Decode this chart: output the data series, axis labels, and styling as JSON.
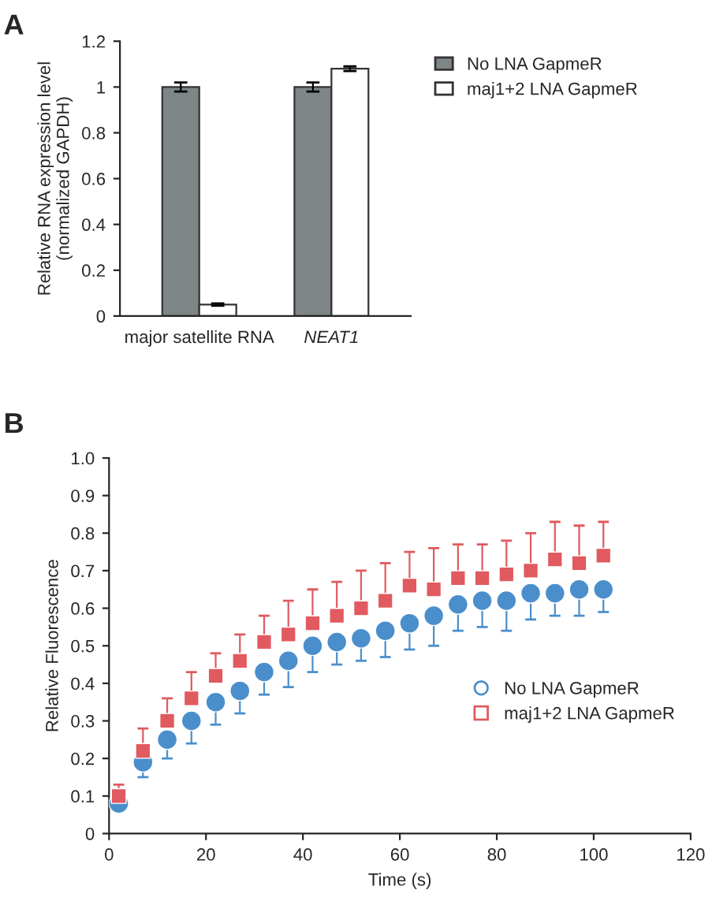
{
  "chart_data": [
    {
      "type": "bar",
      "title": "A",
      "ylabel": "Relative RNA expression level\n(normalized GAPDH)",
      "categories": [
        "major satellite RNA",
        "NEAT1"
      ],
      "ylim": [
        0,
        1.2
      ],
      "yticks": [
        0,
        0.2,
        0.4,
        0.6,
        0.8,
        1,
        1.2
      ],
      "legend": "top right",
      "grid": false,
      "series": [
        {
          "name": "No LNA GapmeR",
          "color": "#7f8687",
          "values": [
            1.0,
            1.0
          ],
          "errors": [
            0.02,
            0.02
          ]
        },
        {
          "name": "maj1+2 LNA GapmeR",
          "color": "#ffffff",
          "values": [
            0.05,
            1.08
          ],
          "errors": [
            0.005,
            0.01
          ]
        }
      ]
    },
    {
      "type": "scatter",
      "title": "B",
      "xlabel": "Time (s)",
      "ylabel": "Relative Fluorescence",
      "xlim": [
        0,
        120
      ],
      "xticks": [
        0,
        20,
        40,
        60,
        80,
        100,
        120
      ],
      "ylim": [
        0,
        1.0
      ],
      "yticks": [
        0,
        0.1,
        0.2,
        0.3,
        0.4,
        0.5,
        0.6,
        0.7,
        0.8,
        0.9,
        {
          "value": 1.0,
          "label": "1.0"
        }
      ],
      "legend": "right",
      "grid": false,
      "x": [
        2,
        7,
        12,
        17,
        22,
        27,
        32,
        37,
        42,
        47,
        52,
        57,
        62,
        67,
        72,
        77,
        82,
        87,
        92,
        97,
        102
      ],
      "series": [
        {
          "name": "No LNA GapmeR",
          "color": "#4a8fcc",
          "marker": "circle",
          "values": [
            0.08,
            0.19,
            0.25,
            0.3,
            0.35,
            0.38,
            0.43,
            0.46,
            0.5,
            0.51,
            0.52,
            0.54,
            0.56,
            0.58,
            0.61,
            0.62,
            0.62,
            0.64,
            0.64,
            0.65,
            0.65
          ],
          "errors": [
            [
              0.06,
              0.08
            ],
            [
              0.15,
              0.19
            ],
            [
              0.2,
              0.25
            ],
            [
              0.24,
              0.3
            ],
            [
              0.29,
              0.35
            ],
            [
              0.32,
              0.38
            ],
            [
              0.37,
              0.43
            ],
            [
              0.39,
              0.46
            ],
            [
              0.43,
              0.5
            ],
            [
              0.45,
              0.51
            ],
            [
              0.46,
              0.52
            ],
            [
              0.47,
              0.54
            ],
            [
              0.49,
              0.56
            ],
            [
              0.5,
              0.58
            ],
            [
              0.54,
              0.61
            ],
            [
              0.55,
              0.62
            ],
            [
              0.54,
              0.62
            ],
            [
              0.57,
              0.64
            ],
            [
              0.58,
              0.64
            ],
            [
              0.58,
              0.65
            ],
            [
              0.59,
              0.65
            ]
          ]
        },
        {
          "name": "maj1+2 LNA GapmeR",
          "color": "#e05a5f",
          "marker": "square",
          "values": [
            0.1,
            0.22,
            0.3,
            0.36,
            0.42,
            0.46,
            0.51,
            0.53,
            0.56,
            0.58,
            0.6,
            0.62,
            0.66,
            0.65,
            0.68,
            0.68,
            0.69,
            0.7,
            0.73,
            0.72,
            0.74
          ],
          "errors": [
            [
              0.1,
              0.13
            ],
            [
              0.22,
              0.28
            ],
            [
              0.3,
              0.36
            ],
            [
              0.36,
              0.43
            ],
            [
              0.42,
              0.48
            ],
            [
              0.46,
              0.53
            ],
            [
              0.51,
              0.58
            ],
            [
              0.53,
              0.62
            ],
            [
              0.56,
              0.65
            ],
            [
              0.58,
              0.67
            ],
            [
              0.6,
              0.7
            ],
            [
              0.62,
              0.72
            ],
            [
              0.66,
              0.75
            ],
            [
              0.65,
              0.76
            ],
            [
              0.68,
              0.77
            ],
            [
              0.68,
              0.77
            ],
            [
              0.69,
              0.78
            ],
            [
              0.7,
              0.8
            ],
            [
              0.73,
              0.83
            ],
            [
              0.72,
              0.82
            ],
            [
              0.74,
              0.83
            ]
          ]
        }
      ]
    }
  ]
}
